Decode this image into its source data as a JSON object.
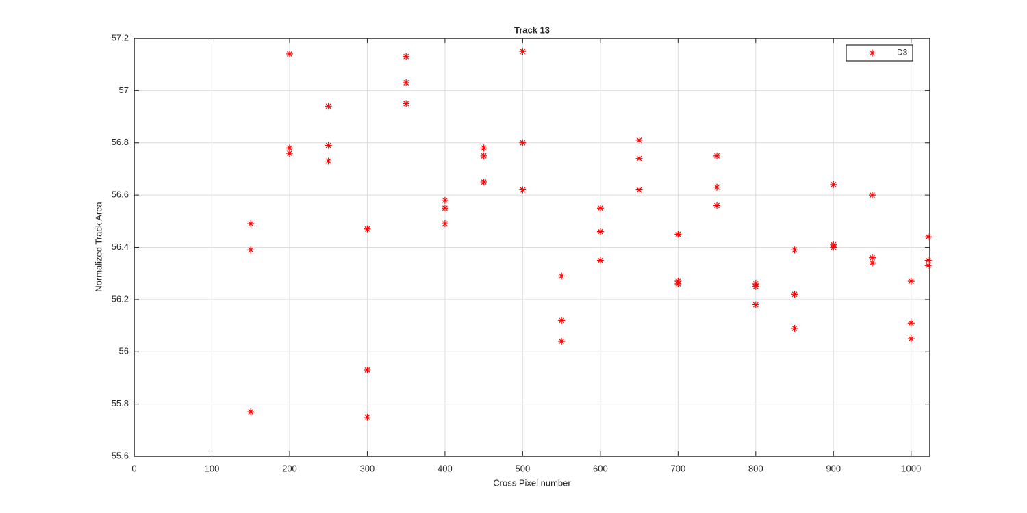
{
  "chart_data": {
    "type": "scatter",
    "title": "Track 13",
    "x_label": "Cross Pixel number",
    "y_label": "Normalized Track Area",
    "x": [
      150,
      150,
      150,
      200,
      200,
      200,
      250,
      250,
      250,
      300,
      300,
      300,
      350,
      350,
      350,
      400,
      400,
      400,
      450,
      450,
      450,
      500,
      500,
      500,
      550,
      550,
      550,
      600,
      600,
      600,
      650,
      650,
      650,
      700,
      700,
      700,
      750,
      750,
      750,
      800,
      800,
      800,
      850,
      850,
      850,
      900,
      900,
      900,
      950,
      950,
      950,
      1000,
      1000,
      1000,
      1022,
      1022,
      1022
    ],
    "series": [
      {
        "name": "D3",
        "color": "#ff0000",
        "values": [
          56.49,
          56.39,
          55.77,
          57.14,
          56.78,
          56.76,
          56.94,
          56.79,
          56.73,
          56.47,
          55.93,
          55.75,
          57.13,
          57.03,
          56.95,
          56.58,
          56.55,
          56.49,
          56.78,
          56.75,
          56.65,
          57.15,
          56.8,
          56.62,
          56.29,
          56.12,
          56.04,
          56.55,
          56.46,
          56.35,
          56.81,
          56.74,
          56.62,
          56.45,
          56.27,
          56.26,
          56.75,
          56.63,
          56.56,
          56.26,
          56.25,
          56.18,
          56.39,
          56.22,
          56.09,
          56.64,
          56.41,
          56.4,
          56.6,
          56.36,
          56.34,
          56.27,
          56.11,
          56.05,
          56.44,
          56.35,
          56.33
        ]
      }
    ],
    "xlim": [
      0,
      1024
    ],
    "xticks": [
      0,
      100,
      200,
      300,
      400,
      500,
      600,
      700,
      800,
      900,
      1000
    ],
    "ylim": [
      55.6,
      57.2
    ],
    "yticks": [
      55.6,
      55.8,
      56,
      56.2,
      56.4,
      56.6,
      56.8,
      57,
      57.2
    ],
    "grid": true,
    "legend": "northeast"
  }
}
